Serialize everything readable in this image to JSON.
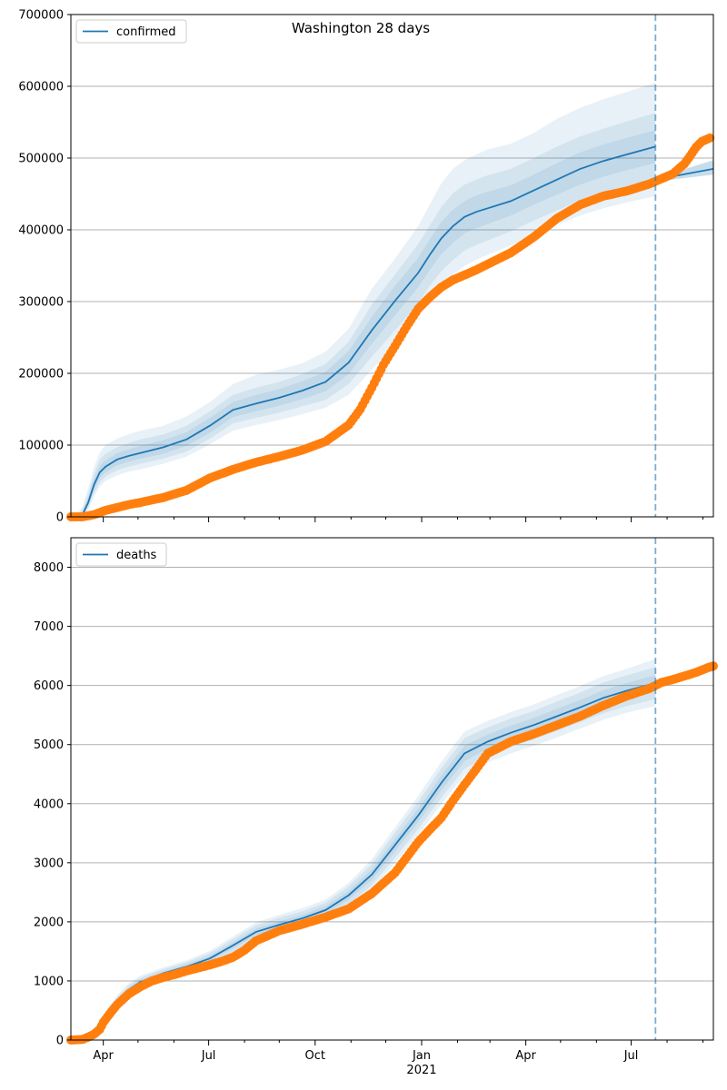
{
  "chart_data": [
    {
      "type": "line",
      "title": "Washington 28 days",
      "legend": {
        "entries": [
          "confirmed"
        ],
        "placement": "top-left"
      },
      "grid": "y",
      "ylim": [
        0,
        700000
      ],
      "yticks": [
        0,
        100000,
        200000,
        300000,
        400000,
        500000,
        600000,
        700000
      ],
      "ytick_labels": [
        "0",
        "100000",
        "200000",
        "300000",
        "400000",
        "500000",
        "600000",
        "700000"
      ],
      "forecast_start_day": 505,
      "model": {
        "name": "confirmed",
        "color": "#1f77b4",
        "days": [
          0,
          5,
          10,
          15,
          20,
          25,
          30,
          40,
          50,
          60,
          80,
          100,
          120,
          140,
          160,
          180,
          200,
          220,
          240,
          260,
          280,
          300,
          310,
          320,
          330,
          340,
          350,
          360,
          380,
          400,
          420,
          440,
          460,
          480,
          505
        ],
        "mean": [
          0,
          0,
          3000,
          20000,
          45000,
          62000,
          70000,
          80000,
          85000,
          89000,
          97000,
          108000,
          127000,
          149000,
          158000,
          166000,
          176000,
          188000,
          215000,
          260000,
          301000,
          340000,
          365000,
          388000,
          405000,
          418000,
          425000,
          430000,
          440000,
          455000,
          470000,
          485000,
          496000,
          505000,
          516000
        ],
        "bands": [
          {
            "lower": [
              0,
              0,
              0,
              10000,
              28000,
              42000,
              50000,
              58000,
              63000,
              66000,
              74000,
              84000,
              101000,
              120000,
              128000,
              135000,
              143000,
              152000,
              170000,
              205000,
              240000,
              278000,
              300000,
              320000,
              337000,
              350000,
              358000,
              365000,
              378000,
              393000,
              407000,
              420000,
              430000,
              438000,
              447000
            ],
            "upper": [
              2000,
              3000,
              14000,
              40000,
              70000,
              90000,
              100000,
              109000,
              115000,
              120000,
              127000,
              140000,
              160000,
              185000,
              198000,
              205000,
              214000,
              230000,
              262000,
              318000,
              360000,
              405000,
              435000,
              465000,
              485000,
              497000,
              505000,
              512000,
              520000,
              535000,
              555000,
              570000,
              582000,
              592000,
              605000
            ]
          },
          {
            "lower": [
              0,
              0,
              0,
              13000,
              33000,
              48000,
              56000,
              65000,
              70000,
              74000,
              81000,
              91000,
              109000,
              130000,
              138000,
              145000,
              154000,
              163000,
              185000,
              223000,
              260000,
              298000,
              322000,
              342000,
              358000,
              371000,
              379000,
              385000,
              398000,
              413000,
              427000,
              441000,
              452000,
              460000,
              470000
            ],
            "upper": [
              1500,
              2000,
              10000,
              32000,
              60000,
              80000,
              88000,
              97000,
              103000,
              108000,
              115000,
              127000,
              147000,
              170000,
              180000,
              188000,
              199000,
              213000,
              244000,
              296000,
              338000,
              380000,
              406000,
              432000,
              451000,
              463000,
              470000,
              476000,
              485000,
              500000,
              516000,
              530000,
              541000,
              551000,
              563000
            ]
          },
          {
            "lower": [
              0,
              0,
              1000,
              16000,
              38000,
              54000,
              62000,
              72000,
              77000,
              81000,
              88000,
              99000,
              117000,
              139000,
              147000,
              155000,
              164000,
              175000,
              199000,
              241000,
              281000,
              320000,
              344000,
              366000,
              382000,
              395000,
              402000,
              408000,
              420000,
              435000,
              449000,
              463000,
              474000,
              483000,
              493000
            ],
            "upper": [
              1000,
              1000,
              6000,
              26000,
              53000,
              71000,
              79000,
              89000,
              94000,
              99000,
              107000,
              118000,
              138000,
              160000,
              170000,
              178000,
              189000,
              202000,
              231000,
              279000,
              322000,
              361000,
              387000,
              411000,
              428000,
              440000,
              448000,
              453000,
              462000,
              477000,
              493000,
              508000,
              519000,
              528000,
              539000
            ]
          }
        ]
      },
      "forecast": {
        "days": [
          505,
          515,
          525,
          535,
          545,
          555
        ],
        "mean": [
          470000,
          473000,
          476000,
          479000,
          482000,
          485000
        ],
        "lower": [
          467000,
          469000,
          471000,
          473000,
          475000,
          477000
        ],
        "upper": [
          474000,
          478000,
          482000,
          487000,
          492000,
          497000
        ]
      },
      "observed": {
        "color": "#ff7f0e",
        "days": [
          0,
          10,
          20,
          30,
          40,
          50,
          60,
          80,
          100,
          120,
          140,
          160,
          180,
          200,
          220,
          240,
          250,
          260,
          270,
          280,
          290,
          300,
          310,
          320,
          330,
          340,
          350,
          360,
          380,
          400,
          420,
          440,
          460,
          480,
          500,
          510,
          520,
          530,
          535,
          540,
          545,
          552
        ],
        "values": [
          0,
          0,
          3000,
          9000,
          13000,
          17000,
          20000,
          27000,
          37000,
          54000,
          66000,
          76000,
          84000,
          93000,
          105000,
          128000,
          150000,
          180000,
          212000,
          238000,
          265000,
          290000,
          306000,
          320000,
          330000,
          337000,
          344000,
          352000,
          368000,
          390000,
          416000,
          435000,
          447000,
          454000,
          464000,
          471000,
          478000,
          492000,
          503000,
          515000,
          523000,
          528000
        ]
      }
    },
    {
      "type": "line",
      "title": "",
      "legend": {
        "entries": [
          "deaths"
        ],
        "placement": "top-left"
      },
      "grid": "y",
      "ylim": [
        0,
        8500
      ],
      "yticks": [
        0,
        1000,
        2000,
        3000,
        4000,
        5000,
        6000,
        7000,
        8000
      ],
      "ytick_labels": [
        "0",
        "1000",
        "2000",
        "3000",
        "4000",
        "5000",
        "6000",
        "7000",
        "8000"
      ],
      "forecast_start_day": 505,
      "model": {
        "name": "deaths",
        "color": "#1f77b4",
        "days": [
          20,
          30,
          40,
          50,
          60,
          80,
          100,
          120,
          140,
          160,
          180,
          200,
          220,
          240,
          260,
          280,
          300,
          320,
          340,
          360,
          380,
          400,
          420,
          440,
          460,
          480,
          505
        ],
        "mean": [
          150,
          400,
          650,
          850,
          980,
          1130,
          1240,
          1380,
          1600,
          1830,
          1950,
          2060,
          2200,
          2450,
          2800,
          3300,
          3800,
          4350,
          4850,
          5050,
          5200,
          5330,
          5480,
          5630,
          5790,
          5910,
          6040
        ],
        "bands": [
          {
            "lower": [
              100,
              320,
              540,
              740,
              870,
              1030,
              1130,
              1250,
              1450,
              1670,
              1780,
              1890,
              2020,
              2240,
              2540,
              3000,
              3470,
              3990,
              4480,
              4700,
              4850,
              4980,
              5120,
              5270,
              5420,
              5540,
              5650
            ],
            "upper": [
              200,
              480,
              760,
              960,
              1090,
              1230,
              1350,
              1510,
              1750,
              1990,
              2120,
              2230,
              2380,
              2660,
              3060,
              3600,
              4130,
              4710,
              5220,
              5400,
              5550,
              5680,
              5840,
              5990,
              6160,
              6280,
              6450
            ]
          },
          {
            "lower": [
              115,
              345,
              575,
              775,
              905,
              1060,
              1165,
              1290,
              1495,
              1720,
              1830,
              1940,
              2075,
              2300,
              2620,
              3090,
              3570,
              4100,
              4590,
              4810,
              4960,
              5090,
              5230,
              5380,
              5530,
              5650,
              5770
            ],
            "upper": [
              185,
              455,
              725,
              925,
              1055,
              1200,
              1315,
              1470,
              1705,
              1940,
              2070,
              2180,
              2325,
              2600,
              2980,
              3510,
              4030,
              4600,
              5110,
              5290,
              5440,
              5570,
              5730,
              5880,
              6050,
              6170,
              6310
            ]
          },
          {
            "lower": [
              130,
              370,
              610,
              810,
              940,
              1095,
              1200,
              1335,
              1550,
              1775,
              1890,
              2000,
              2135,
              2375,
              2710,
              3195,
              3685,
              4225,
              4720,
              4930,
              5080,
              5210,
              5355,
              5505,
              5660,
              5780,
              5905
            ],
            "upper": [
              170,
              430,
              690,
              890,
              1020,
              1165,
              1280,
              1425,
              1650,
              1885,
              2010,
              2120,
              2265,
              2525,
              2890,
              3405,
              3915,
              4475,
              4980,
              5170,
              5320,
              5450,
              5605,
              5755,
              5920,
              6040,
              6175
            ]
          }
        ]
      },
      "forecast": {
        "days": [
          505,
          515,
          525,
          535,
          545,
          555
        ],
        "mean": [
          6060,
          6110,
          6160,
          6210,
          6260,
          6310
        ],
        "lower": [
          6040,
          6080,
          6120,
          6160,
          6200,
          6240
        ],
        "upper": [
          6080,
          6140,
          6200,
          6260,
          6320,
          6380
        ]
      },
      "observed": {
        "color": "#ff7f0e",
        "days": [
          0,
          10,
          15,
          20,
          25,
          28,
          35,
          40,
          50,
          60,
          70,
          80,
          90,
          100,
          110,
          120,
          130,
          140,
          150,
          160,
          180,
          200,
          220,
          240,
          260,
          280,
          300,
          310,
          320,
          330,
          340,
          350,
          360,
          380,
          400,
          420,
          440,
          460,
          480,
          500,
          510,
          520,
          530,
          540,
          550,
          555
        ],
        "values": [
          0,
          10,
          50,
          100,
          180,
          300,
          480,
          600,
          780,
          900,
          1000,
          1060,
          1110,
          1170,
          1220,
          1270,
          1330,
          1400,
          1520,
          1680,
          1850,
          1960,
          2080,
          2220,
          2480,
          2830,
          3350,
          3560,
          3760,
          4050,
          4320,
          4580,
          4850,
          5050,
          5180,
          5330,
          5480,
          5660,
          5820,
          5950,
          6050,
          6100,
          6160,
          6220,
          6300,
          6330
        ]
      }
    }
  ],
  "x_axis": {
    "start_day": 0,
    "end_day": 555,
    "ticks": [
      {
        "day": 28,
        "label": "Apr"
      },
      {
        "day": 119,
        "label": "Jul"
      },
      {
        "day": 211,
        "label": "Oct"
      },
      {
        "day": 303,
        "label": "Jan"
      },
      {
        "day": 393,
        "label": "Apr"
      },
      {
        "day": 484,
        "label": "Jul"
      }
    ],
    "minor_ticks": [
      58,
      89,
      150,
      180,
      242,
      272,
      334,
      362,
      423,
      454,
      515,
      546
    ],
    "year_label": {
      "day": 303,
      "text": "2021"
    }
  }
}
